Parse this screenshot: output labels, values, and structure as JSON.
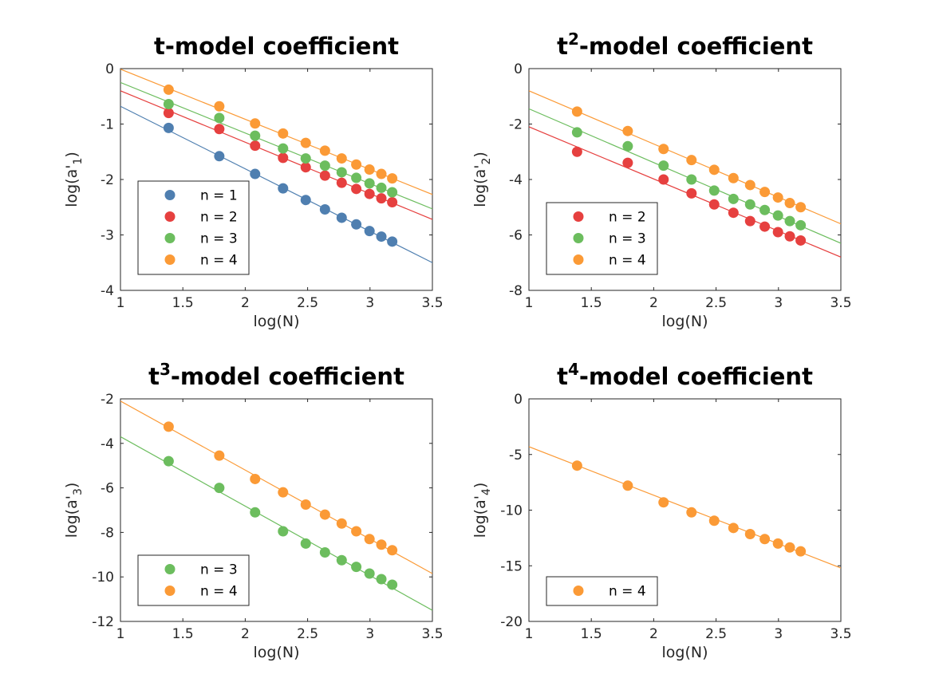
{
  "chart_data": [
    {
      "type": "scatter",
      "title": "t-model coefficient",
      "title_prefix": "t",
      "title_sup": "",
      "title_suffix": "-model coefficient",
      "xlabel": "log(N)",
      "ylabel_main": "log(a'",
      "ylabel_sub": "1",
      "ylabel_close": ")",
      "xlim": [
        1,
        3.5
      ],
      "ylim": [
        -4,
        0
      ],
      "xticks": [
        1,
        1.5,
        2,
        2.5,
        3,
        3.5
      ],
      "xtick_labels": [
        "1",
        "1.5",
        "2",
        "2.5",
        "3",
        "3.5"
      ],
      "yticks": [
        -4,
        -3,
        -2,
        -1,
        0
      ],
      "ytick_labels": [
        "-4",
        "-3",
        "-2",
        "-1",
        "0"
      ],
      "legend_position": "lower-left",
      "x": [
        1.386,
        1.792,
        2.079,
        2.303,
        2.485,
        2.639,
        2.773,
        2.89,
        2.996,
        3.091,
        3.178
      ],
      "series": [
        {
          "name": "n = 1",
          "color": "#4f7fb0",
          "values": [
            -1.07,
            -1.58,
            -1.9,
            -2.16,
            -2.37,
            -2.54,
            -2.69,
            -2.81,
            -2.93,
            -3.03,
            -3.12
          ],
          "fit": [
            [
              1,
              -0.68
            ],
            [
              3.5,
              -3.5
            ]
          ]
        },
        {
          "name": "n = 2",
          "color": "#e6403f",
          "values": [
            -0.8,
            -1.09,
            -1.39,
            -1.61,
            -1.78,
            -1.93,
            -2.06,
            -2.17,
            -2.26,
            -2.34,
            -2.41
          ],
          "fit": [
            [
              1,
              -0.4
            ],
            [
              3.5,
              -2.72
            ]
          ]
        },
        {
          "name": "n = 3",
          "color": "#6cbd5e",
          "values": [
            -0.64,
            -0.89,
            -1.21,
            -1.44,
            -1.62,
            -1.75,
            -1.87,
            -1.97,
            -2.07,
            -2.15,
            -2.23
          ],
          "fit": [
            [
              1,
              -0.25
            ],
            [
              3.5,
              -2.53
            ]
          ]
        },
        {
          "name": "n = 4",
          "color": "#fb9a36",
          "values": [
            -0.38,
            -0.68,
            -0.99,
            -1.17,
            -1.34,
            -1.48,
            -1.62,
            -1.73,
            -1.82,
            -1.9,
            -1.98
          ],
          "fit": [
            [
              1,
              -0.01
            ],
            [
              3.5,
              -2.27
            ]
          ]
        }
      ]
    },
    {
      "type": "scatter",
      "title": "t2-model coefficient",
      "title_prefix": "t",
      "title_sup": "2",
      "title_suffix": "-model coefficient",
      "xlabel": "log(N)",
      "ylabel_main": "log(a'",
      "ylabel_sub": "2",
      "ylabel_close": ")",
      "xlim": [
        1,
        3.5
      ],
      "ylim": [
        -8,
        0
      ],
      "xticks": [
        1,
        1.5,
        2,
        2.5,
        3,
        3.5
      ],
      "xtick_labels": [
        "1",
        "1.5",
        "2",
        "2.5",
        "3",
        "3.5"
      ],
      "yticks": [
        -8,
        -6,
        -4,
        -2,
        0
      ],
      "ytick_labels": [
        "-8",
        "-6",
        "-4",
        "-2",
        "0"
      ],
      "legend_position": "lower-left",
      "x": [
        1.386,
        1.792,
        2.079,
        2.303,
        2.485,
        2.639,
        2.773,
        2.89,
        2.996,
        3.091,
        3.178
      ],
      "series": [
        {
          "name": "n = 2",
          "color": "#e6403f",
          "values": [
            -3.0,
            -3.4,
            -4.0,
            -4.5,
            -4.9,
            -5.2,
            -5.5,
            -5.7,
            -5.9,
            -6.05,
            -6.2
          ],
          "fit": [
            [
              1,
              -2.1
            ],
            [
              3.5,
              -6.8
            ]
          ]
        },
        {
          "name": "n = 3",
          "color": "#6cbd5e",
          "values": [
            -2.3,
            -2.8,
            -3.5,
            -4.0,
            -4.4,
            -4.7,
            -4.9,
            -5.1,
            -5.3,
            -5.5,
            -5.65
          ],
          "fit": [
            [
              1,
              -1.45
            ],
            [
              3.5,
              -6.3
            ]
          ]
        },
        {
          "name": "n = 4",
          "color": "#fb9a36",
          "values": [
            -1.55,
            -2.25,
            -2.9,
            -3.3,
            -3.65,
            -3.95,
            -4.2,
            -4.45,
            -4.65,
            -4.85,
            -5.0
          ],
          "fit": [
            [
              1,
              -0.8
            ],
            [
              3.5,
              -5.6
            ]
          ]
        }
      ]
    },
    {
      "type": "scatter",
      "title": "t3-model coefficient",
      "title_prefix": "t",
      "title_sup": "3",
      "title_suffix": "-model coefficient",
      "xlabel": "log(N)",
      "ylabel_main": "log(a'",
      "ylabel_sub": "3",
      "ylabel_close": ")",
      "xlim": [
        1,
        3.5
      ],
      "ylim": [
        -12,
        -2
      ],
      "xticks": [
        1,
        1.5,
        2,
        2.5,
        3,
        3.5
      ],
      "xtick_labels": [
        "1",
        "1.5",
        "2",
        "2.5",
        "3",
        "3.5"
      ],
      "yticks": [
        -12,
        -10,
        -8,
        -6,
        -4,
        -2
      ],
      "ytick_labels": [
        "-12",
        "-10",
        "-8",
        "-6",
        "-4",
        "-2"
      ],
      "legend_position": "lower-left",
      "x": [
        1.386,
        1.792,
        2.079,
        2.303,
        2.485,
        2.639,
        2.773,
        2.89,
        2.996,
        3.091,
        3.178
      ],
      "series": [
        {
          "name": "n = 3",
          "color": "#6cbd5e",
          "values": [
            -4.8,
            -6.0,
            -7.1,
            -7.95,
            -8.5,
            -8.9,
            -9.25,
            -9.55,
            -9.85,
            -10.1,
            -10.35
          ],
          "fit": [
            [
              1,
              -3.7
            ],
            [
              3.5,
              -11.5
            ]
          ]
        },
        {
          "name": "n = 4",
          "color": "#fb9a36",
          "values": [
            -3.25,
            -4.55,
            -5.6,
            -6.2,
            -6.75,
            -7.2,
            -7.6,
            -7.95,
            -8.3,
            -8.55,
            -8.8
          ],
          "fit": [
            [
              1,
              -2.1
            ],
            [
              3.5,
              -9.85
            ]
          ]
        }
      ]
    },
    {
      "type": "scatter",
      "title": "t4-model coefficient",
      "title_prefix": "t",
      "title_sup": "4",
      "title_suffix": "-model coefficient",
      "xlabel": "log(N)",
      "ylabel_main": "log(a'",
      "ylabel_sub": "4",
      "ylabel_close": ")",
      "xlim": [
        1,
        3.5
      ],
      "ylim": [
        -20,
        0
      ],
      "xticks": [
        1,
        1.5,
        2,
        2.5,
        3,
        3.5
      ],
      "xtick_labels": [
        "1",
        "1.5",
        "2",
        "2.5",
        "3",
        "3.5"
      ],
      "yticks": [
        -20,
        -15,
        -10,
        -5,
        0
      ],
      "ytick_labels": [
        "-20",
        "-15",
        "-10",
        "-5",
        "0"
      ],
      "legend_position": "lower-left",
      "x": [
        1.386,
        1.792,
        2.079,
        2.303,
        2.485,
        2.639,
        2.773,
        2.89,
        2.996,
        3.091,
        3.178
      ],
      "series": [
        {
          "name": "n = 4",
          "color": "#fb9a36",
          "values": [
            -6.0,
            -7.8,
            -9.3,
            -10.2,
            -10.95,
            -11.6,
            -12.15,
            -12.6,
            -13.0,
            -13.35,
            -13.7
          ],
          "fit": [
            [
              1,
              -4.3
            ],
            [
              3.5,
              -15.2
            ]
          ]
        }
      ]
    }
  ]
}
